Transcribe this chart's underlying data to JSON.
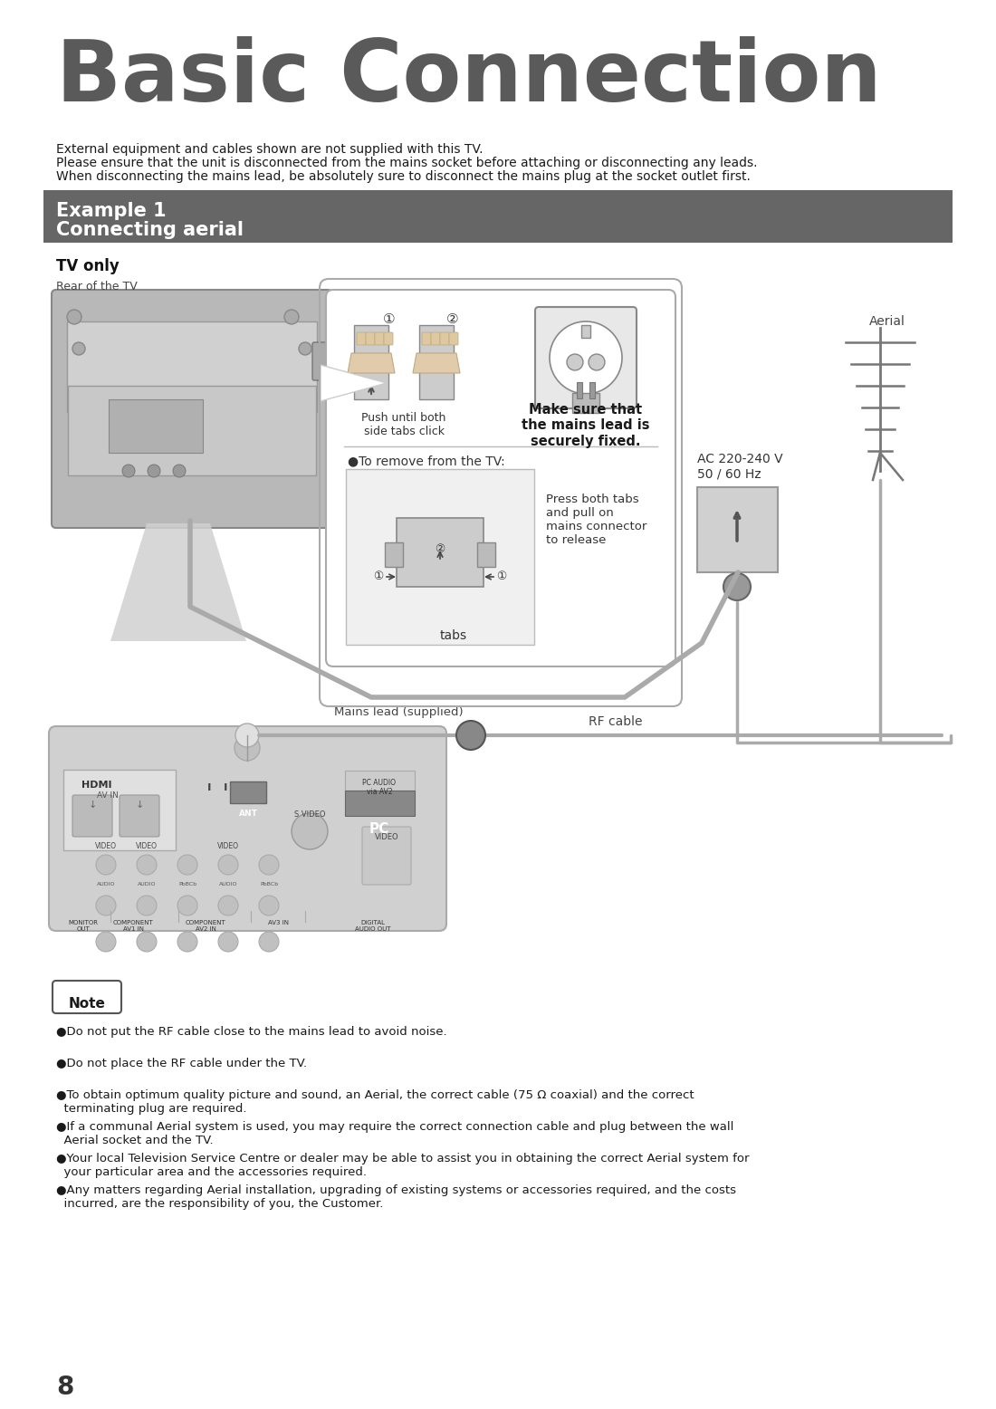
{
  "title": "Basic Connection",
  "title_color": "#5a5a5a",
  "bg_color": "#ffffff",
  "intro_line1": "External equipment and cables shown are not supplied with this TV.",
  "intro_line2": "Please ensure that the unit is disconnected from the mains socket before attaching or disconnecting any leads.",
  "intro_line3": "When disconnecting the mains lead, be absolutely sure to disconnect the mains plug at the socket outlet first.",
  "example_header_bg": "#666666",
  "tv_only_label": "TV only",
  "rear_label": "Rear of the TV",
  "circle1": "①",
  "circle2": "②",
  "push_text": "Push until both\nside tabs click",
  "make_sure_text": "Make sure that\nthe mains lead is\nsecurely fixed.",
  "remove_text": "●To remove from the TV:",
  "press_text": "Press both tabs\nand pull on\nmains connector\nto release",
  "tabs_text": "tabs",
  "aerial_text": "Aerial",
  "ac_text": "AC 220-240 V\n50 / 60 Hz",
  "mains_lead_text": "Mains lead (supplied)",
  "rf_cable_text": "RF cable",
  "note_title": "Note",
  "note_bullets": [
    "●Do not put the RF cable close to the mains lead to avoid noise.",
    "●Do not place the RF cable under the TV.",
    "●To obtain optimum quality picture and sound, an Aerial, the correct cable (75 Ω coaxial) and the correct\n  terminating plug are required.",
    "●If a communal Aerial system is used, you may require the correct connection cable and plug between the wall\n  Aerial socket and the TV.",
    "●Your local Television Service Centre or dealer may be able to assist you in obtaining the correct Aerial system for\n  your particular area and the accessories required.",
    "●Any matters regarding Aerial installation, upgrading of existing systems or accessories required, and the costs\n  incurred, are the responsibility of you, the Customer."
  ],
  "page_number": "8"
}
